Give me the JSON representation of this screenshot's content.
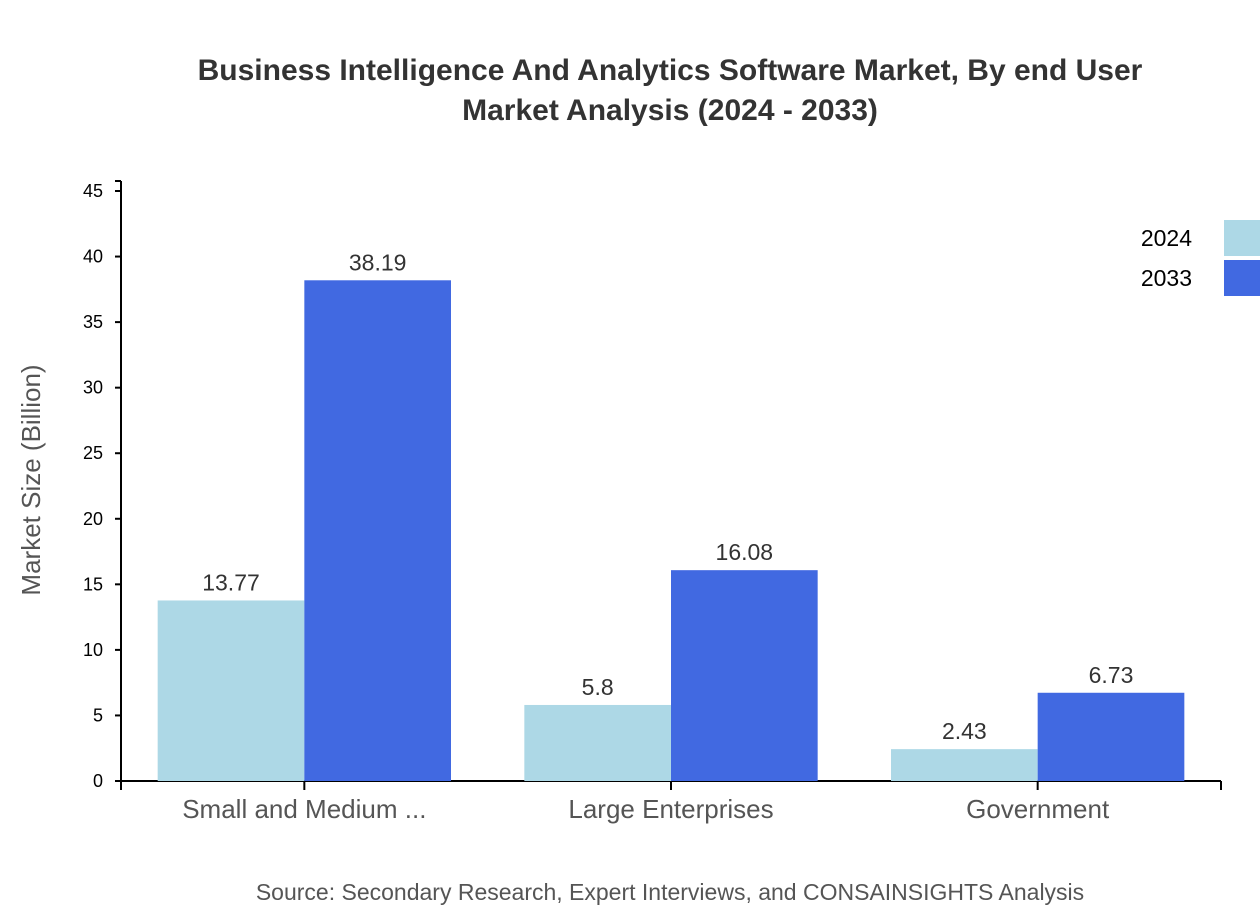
{
  "chart_data": {
    "type": "bar",
    "title": [
      "Business Intelligence And Analytics Software Market, By end User",
      "Market Analysis (2024 - 2033)"
    ],
    "xlabel": "",
    "ylabel": "Market Size (Billion)",
    "ylim": [
      0,
      45
    ],
    "yticks": [
      0,
      5,
      10,
      15,
      20,
      25,
      30,
      35,
      40,
      45
    ],
    "categories": [
      "Small and Medium ...",
      "Large Enterprises",
      "Government"
    ],
    "series": [
      {
        "name": "2024",
        "color": "#add8e6",
        "values": [
          13.77,
          5.8,
          2.43
        ]
      },
      {
        "name": "2033",
        "color": "#4169e1",
        "values": [
          38.19,
          16.08,
          6.73
        ]
      }
    ],
    "legend_position": "top-right",
    "grid": false
  },
  "source": "Source: Secondary Research, Expert Interviews, and CONSAINSIGHTS Analysis"
}
